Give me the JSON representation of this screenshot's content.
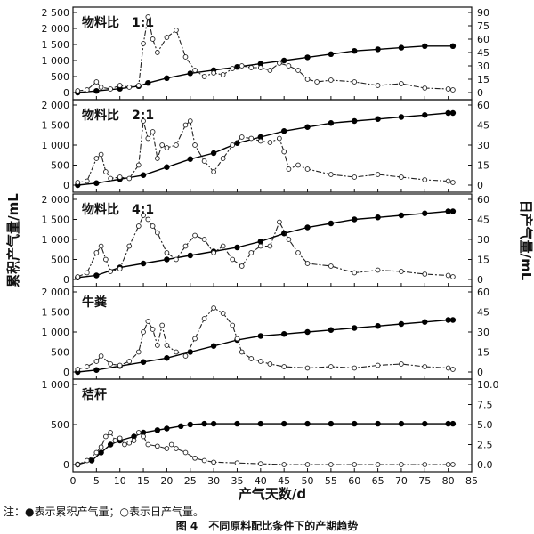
{
  "figure": {
    "note": "注：●表示累积产气量；○表示日产气量。",
    "caption": "图 4　不同原料配比条件下的产期趋势"
  },
  "chart_data": {
    "type": "line",
    "xlabel": "产气天数/d",
    "ylabel_left": "累积产气量/mL",
    "ylabel_right": "日产气量/mL",
    "x_ticks": [
      0,
      5,
      10,
      15,
      20,
      25,
      30,
      35,
      40,
      45,
      50,
      55,
      60,
      65,
      70,
      75,
      80,
      85
    ],
    "xlim": [
      0,
      85
    ],
    "panels": [
      {
        "label": "物料比　1:1",
        "left_ylim": [
          0,
          2500
        ],
        "left_ticks": [
          0,
          500,
          1000,
          1500,
          2000,
          2500
        ],
        "left_tick_labels": [
          "0",
          "500",
          "1 000",
          "1 500",
          "2 000",
          "2 500"
        ],
        "right_ylim": [
          0,
          90
        ],
        "right_ticks": [
          0,
          15,
          30,
          45,
          60,
          75,
          90
        ],
        "right_tick_labels": [
          "0",
          "15",
          "30",
          "45",
          "60",
          "75",
          "90"
        ],
        "series": [
          {
            "role": "cumulative",
            "axis": "left",
            "x": [
              1,
              5,
              10,
              14,
              16,
              20,
              25,
              30,
              35,
              40,
              45,
              50,
              55,
              60,
              65,
              70,
              75,
              81
            ],
            "y": [
              0,
              50,
              120,
              200,
              300,
              450,
              600,
              700,
              800,
              900,
              1000,
              1100,
              1200,
              1300,
              1350,
              1400,
              1450,
              1450
            ]
          },
          {
            "role": "daily",
            "axis": "right",
            "x": [
              1,
              3,
              5,
              6,
              8,
              10,
              12,
              14,
              15,
              16,
              17,
              18,
              20,
              22,
              24,
              26,
              28,
              30,
              32,
              34,
              36,
              38,
              40,
              42,
              44,
              46,
              48,
              50,
              52,
              55,
              60,
              65,
              70,
              75,
              80,
              81
            ],
            "y": [
              2,
              3,
              12,
              6,
              4,
              8,
              6,
              8,
              55,
              85,
              60,
              45,
              62,
              70,
              40,
              25,
              18,
              22,
              20,
              27,
              30,
              28,
              28,
              25,
              33,
              30,
              25,
              15,
              12,
              14,
              12,
              8,
              10,
              5,
              4,
              3
            ]
          }
        ]
      },
      {
        "label": "物料比　2:1",
        "left_ylim": [
          0,
          2000
        ],
        "left_ticks": [
          0,
          500,
          1000,
          1500,
          2000
        ],
        "left_tick_labels": [
          "0",
          "500",
          "1 000",
          "1 500",
          "2 000"
        ],
        "right_ylim": [
          0,
          60
        ],
        "right_ticks": [
          0,
          15,
          30,
          45,
          60
        ],
        "right_tick_labels": [
          "0",
          "15",
          "30",
          "45",
          "60"
        ],
        "series": [
          {
            "role": "cumulative",
            "axis": "left",
            "x": [
              1,
              5,
              10,
              15,
              20,
              25,
              30,
              35,
              40,
              45,
              50,
              55,
              60,
              65,
              70,
              75,
              80,
              81
            ],
            "y": [
              0,
              50,
              150,
              250,
              450,
              650,
              800,
              1050,
              1200,
              1350,
              1450,
              1550,
              1600,
              1650,
              1700,
              1750,
              1800,
              1800
            ]
          },
          {
            "role": "daily",
            "axis": "right",
            "x": [
              1,
              3,
              5,
              6,
              7,
              8,
              10,
              12,
              14,
              15,
              16,
              17,
              18,
              19,
              20,
              22,
              24,
              25,
              26,
              28,
              30,
              32,
              34,
              36,
              38,
              40,
              42,
              44,
              45,
              46,
              48,
              50,
              55,
              60,
              65,
              70,
              75,
              80,
              81
            ],
            "y": [
              2,
              3,
              20,
              23,
              10,
              5,
              6,
              5,
              15,
              48,
              35,
              40,
              20,
              30,
              28,
              30,
              45,
              48,
              30,
              18,
              10,
              20,
              30,
              36,
              35,
              33,
              32,
              35,
              25,
              12,
              15,
              12,
              8,
              6,
              8,
              6,
              4,
              3,
              2
            ]
          }
        ]
      },
      {
        "label": "物料比　4:1",
        "left_ylim": [
          0,
          2000
        ],
        "left_ticks": [
          0,
          500,
          1000,
          1500,
          2000
        ],
        "left_tick_labels": [
          "0",
          "500",
          "1 000",
          "1 500",
          "2 000"
        ],
        "right_ylim": [
          0,
          60
        ],
        "right_ticks": [
          0,
          15,
          30,
          45,
          60
        ],
        "right_tick_labels": [
          "0",
          "15",
          "30",
          "45",
          "60"
        ],
        "series": [
          {
            "role": "cumulative",
            "axis": "left",
            "x": [
              1,
              5,
              10,
              15,
              20,
              25,
              30,
              35,
              40,
              45,
              50,
              55,
              60,
              65,
              70,
              75,
              80,
              81
            ],
            "y": [
              50,
              100,
              300,
              400,
              500,
              600,
              700,
              800,
              950,
              1150,
              1300,
              1400,
              1500,
              1550,
              1600,
              1650,
              1700,
              1700
            ]
          },
          {
            "role": "daily",
            "axis": "right",
            "x": [
              1,
              3,
              5,
              6,
              7,
              8,
              10,
              12,
              14,
              15,
              16,
              17,
              18,
              20,
              22,
              24,
              26,
              28,
              30,
              32,
              34,
              36,
              38,
              40,
              42,
              44,
              46,
              48,
              50,
              55,
              60,
              65,
              70,
              75,
              80,
              81
            ],
            "y": [
              2,
              5,
              20,
              25,
              15,
              6,
              8,
              25,
              40,
              48,
              45,
              40,
              35,
              20,
              15,
              25,
              33,
              30,
              20,
              25,
              15,
              10,
              20,
              25,
              25,
              43,
              30,
              20,
              12,
              10,
              5,
              7,
              6,
              4,
              3,
              2
            ]
          }
        ]
      },
      {
        "label": "牛粪",
        "left_ylim": [
          0,
          2000
        ],
        "left_ticks": [
          0,
          500,
          1000,
          1500,
          2000
        ],
        "left_tick_labels": [
          "0",
          "500",
          "1 000",
          "1 500",
          "2 000"
        ],
        "right_ylim": [
          0,
          60
        ],
        "right_ticks": [
          0,
          15,
          30,
          45,
          60
        ],
        "right_tick_labels": [
          "0",
          "15",
          "30",
          "45",
          "60"
        ],
        "series": [
          {
            "role": "cumulative",
            "axis": "left",
            "x": [
              1,
              5,
              10,
              15,
              20,
              25,
              30,
              35,
              40,
              45,
              50,
              55,
              60,
              65,
              70,
              75,
              80,
              81
            ],
            "y": [
              0,
              50,
              150,
              250,
              350,
              500,
              650,
              800,
              900,
              950,
              1000,
              1050,
              1100,
              1150,
              1200,
              1250,
              1300,
              1300
            ]
          },
          {
            "role": "daily",
            "axis": "right",
            "x": [
              1,
              3,
              5,
              6,
              8,
              10,
              12,
              14,
              15,
              16,
              17,
              18,
              19,
              20,
              22,
              24,
              26,
              28,
              30,
              32,
              34,
              35,
              36,
              38,
              40,
              42,
              45,
              50,
              55,
              60,
              65,
              70,
              75,
              80,
              81
            ],
            "y": [
              2,
              4,
              8,
              12,
              6,
              5,
              8,
              15,
              30,
              38,
              32,
              20,
              35,
              20,
              15,
              12,
              25,
              40,
              48,
              44,
              35,
              25,
              15,
              10,
              8,
              6,
              4,
              3,
              4,
              3,
              5,
              6,
              4,
              3,
              2
            ]
          }
        ]
      },
      {
        "label": "秸秆",
        "left_ylim": [
          0,
          1000
        ],
        "left_ticks": [
          0,
          500,
          1000
        ],
        "left_tick_labels": [
          "0",
          "500",
          "1 000"
        ],
        "right_ylim": [
          0,
          10
        ],
        "right_ticks": [
          0,
          2.5,
          5,
          7.5,
          10
        ],
        "right_tick_labels": [
          "0.0",
          "2.5",
          "5.0",
          "7.5",
          "10.0"
        ],
        "series": [
          {
            "role": "cumulative",
            "axis": "left",
            "x": [
              1,
              4,
              6,
              8,
              10,
              13,
              15,
              18,
              20,
              23,
              25,
              28,
              30,
              35,
              40,
              45,
              50,
              55,
              60,
              65,
              70,
              75,
              80,
              81
            ],
            "y": [
              0,
              50,
              150,
              250,
              300,
              350,
              400,
              430,
              450,
              480,
              500,
              510,
              510,
              510,
              510,
              510,
              510,
              510,
              510,
              510,
              510,
              510,
              510,
              510
            ]
          },
          {
            "role": "daily",
            "axis": "right",
            "x": [
              1,
              3,
              5,
              6,
              7,
              8,
              9,
              10,
              11,
              12,
              13,
              14,
              15,
              16,
              18,
              20,
              21,
              22,
              24,
              26,
              28,
              30,
              35,
              40,
              45,
              50,
              55,
              60,
              65,
              70,
              75,
              80,
              81
            ],
            "y": [
              0,
              0.5,
              1.5,
              2.2,
              3.5,
              4,
              3,
              3.3,
              2.5,
              2.7,
              3,
              4,
              3.5,
              2.5,
              2.3,
              2,
              2.5,
              2,
              1.5,
              0.8,
              0.5,
              0.3,
              0.2,
              0.1,
              0,
              0,
              0,
              0,
              0,
              0,
              0,
              0,
              0
            ]
          }
        ]
      }
    ]
  }
}
